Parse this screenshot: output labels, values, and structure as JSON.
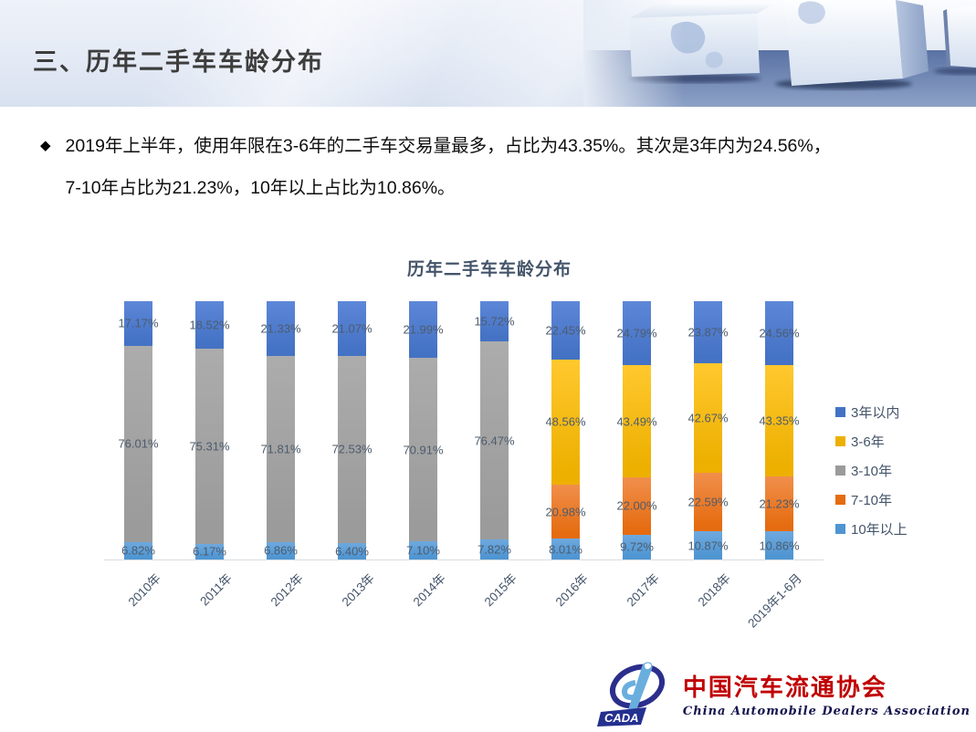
{
  "header": {
    "title": "三、历年二手车车龄分布"
  },
  "bullet": {
    "marker": "◆",
    "line1": "2019年上半年，使用年限在3-6年的二手车交易量最多，占比为43.35%。其次是3年内为24.56%，",
    "line2": "7-10年占比为21.23%，10年以上占比为10.86%。"
  },
  "chart_data": {
    "type": "bar",
    "stacked": true,
    "title": "历年二手车车龄分布",
    "categories": [
      "2010年",
      "2011年",
      "2012年",
      "2013年",
      "2014年",
      "2015年",
      "2016年",
      "2017年",
      "2018年",
      "2019年1-6月"
    ],
    "series": [
      {
        "name": "3年以内",
        "color": "#4472C4",
        "color_light": "#5d87d8",
        "values": [
          17.17,
          18.52,
          21.33,
          21.07,
          21.99,
          15.72,
          22.45,
          24.79,
          23.87,
          24.56
        ]
      },
      {
        "name": "3-6年",
        "color": "#EDB000",
        "color_light": "#FFC82E",
        "values": [
          null,
          null,
          null,
          null,
          null,
          null,
          48.56,
          43.49,
          42.67,
          43.35
        ]
      },
      {
        "name": "3-10年",
        "color": "#9B9B9B",
        "color_light": "#ACACAC",
        "values": [
          76.01,
          75.31,
          71.81,
          72.53,
          70.91,
          76.47,
          null,
          null,
          null,
          null
        ]
      },
      {
        "name": "7-10年",
        "color": "#E56C10",
        "color_light": "#F18F4C",
        "values": [
          null,
          null,
          null,
          null,
          null,
          null,
          20.98,
          22.0,
          22.59,
          21.23
        ]
      },
      {
        "name": "10年以上",
        "color": "#4E95D2",
        "color_light": "#6EA9DE",
        "values": [
          6.82,
          6.17,
          6.86,
          6.4,
          7.1,
          7.82,
          8.01,
          9.72,
          10.87,
          10.86
        ]
      }
    ],
    "stack_order_bottom_to_top": [
      "10年以上",
      "7-10年",
      "3-10年",
      "3-6年",
      "3年以内"
    ],
    "ylim": [
      0,
      100
    ],
    "value_suffix": "%",
    "grid": false,
    "legend_position": "right",
    "label_color": "#4d5c6e",
    "axis_label_color": "#44546a"
  },
  "logo": {
    "acronym": "CADA",
    "name_cn": "中国汽车流通协会",
    "name_en": "China  Automobile  Dealers  Association"
  }
}
